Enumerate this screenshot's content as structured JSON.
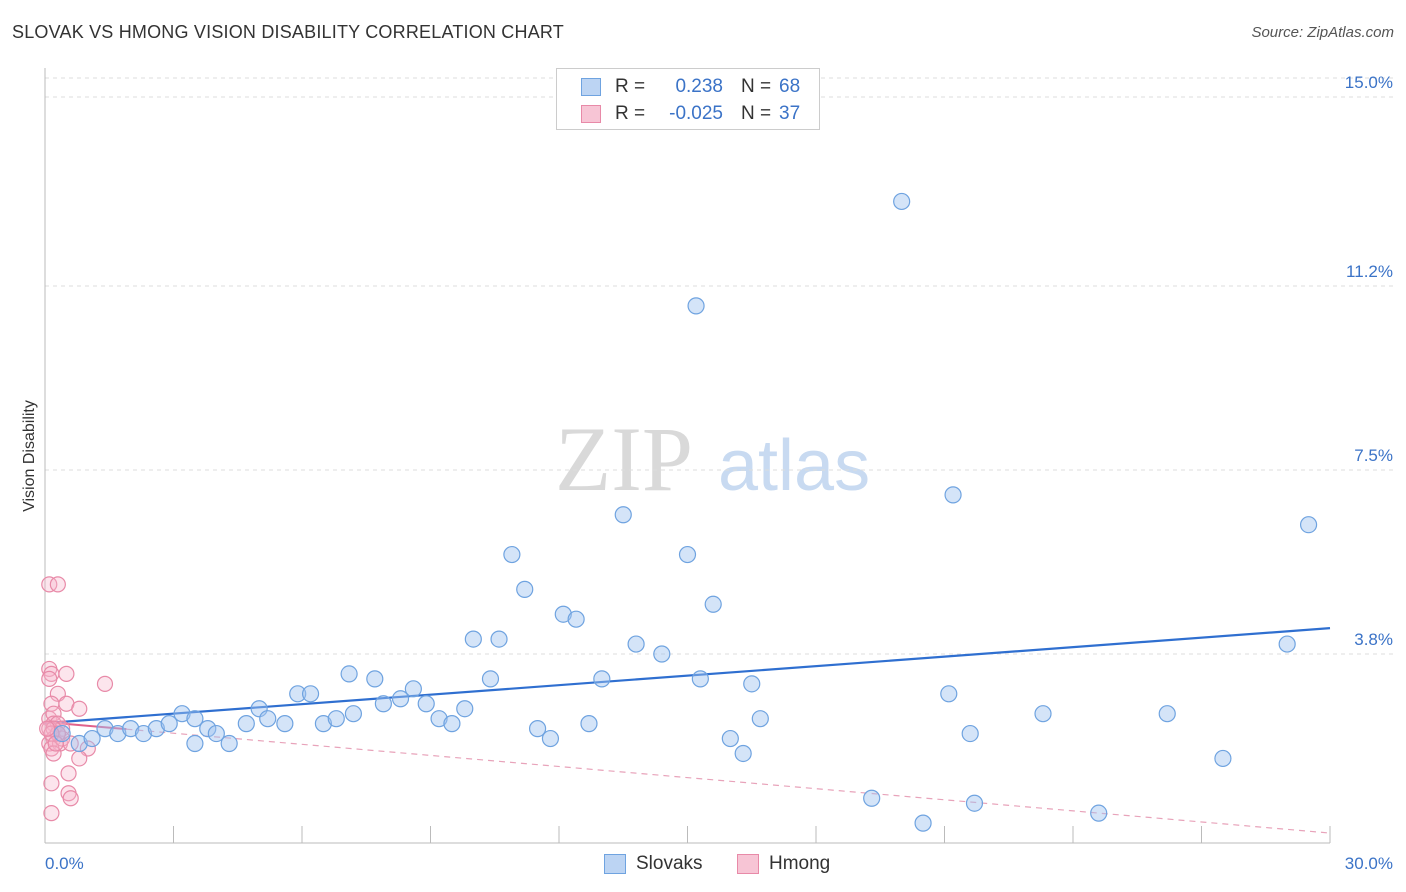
{
  "header": {
    "title": "SLOVAK VS HMONG VISION DISABILITY CORRELATION CHART",
    "source": "Source: ZipAtlas.com"
  },
  "watermark": {
    "zip": "ZIP",
    "atlas": "atlas"
  },
  "legend": {
    "rows": [
      {
        "r_label": "R =",
        "r_value": "0.238",
        "n_label": "N =",
        "n_value": "68",
        "color": "#6fa3e0",
        "fill": "#bcd4f3"
      },
      {
        "r_label": "R =",
        "r_value": "-0.025",
        "n_label": "N =",
        "n_value": "37",
        "color": "#e88aa8",
        "fill": "#f7c5d5"
      }
    ]
  },
  "bottom_legend": {
    "slovaks": "Slovaks",
    "hmong": "Hmong"
  },
  "colors": {
    "blue": "#3b73c7",
    "blue_line": "#2f6fd0",
    "pink": "#e0628c",
    "grid": "#dddddd"
  },
  "chart_data": {
    "type": "scatter",
    "title": "SLOVAK VS HMONG VISION DISABILITY CORRELATION CHART",
    "xlabel": "",
    "ylabel": "Vision Disability",
    "xlim": [
      0,
      30
    ],
    "ylim": [
      0,
      15.5
    ],
    "x_tick_labels": [
      "0.0%",
      "30.0%"
    ],
    "y_ticks": [
      3.8,
      7.5,
      11.2,
      15.0
    ],
    "y_tick_labels": [
      "3.8%",
      "7.5%",
      "11.2%",
      "15.0%"
    ],
    "series": [
      {
        "name": "Slovaks",
        "R": 0.238,
        "N": 68,
        "trend": {
          "x": [
            0,
            30
          ],
          "y": [
            2.41,
            4.32
          ]
        },
        "points": [
          [
            0.4,
            2.2
          ],
          [
            0.8,
            2.0
          ],
          [
            1.1,
            2.1
          ],
          [
            1.4,
            2.3
          ],
          [
            1.7,
            2.2
          ],
          [
            2.0,
            2.3
          ],
          [
            2.3,
            2.2
          ],
          [
            2.6,
            2.3
          ],
          [
            2.9,
            2.4
          ],
          [
            3.2,
            2.6
          ],
          [
            3.5,
            2.5
          ],
          [
            3.5,
            2.0
          ],
          [
            3.8,
            2.3
          ],
          [
            4.0,
            2.2
          ],
          [
            4.3,
            2.0
          ],
          [
            4.7,
            2.4
          ],
          [
            5.0,
            2.7
          ],
          [
            5.2,
            2.5
          ],
          [
            5.6,
            2.4
          ],
          [
            5.9,
            3.0
          ],
          [
            6.2,
            3.0
          ],
          [
            6.5,
            2.4
          ],
          [
            6.8,
            2.5
          ],
          [
            7.1,
            3.4
          ],
          [
            7.2,
            2.6
          ],
          [
            7.7,
            3.3
          ],
          [
            7.9,
            2.8
          ],
          [
            8.3,
            2.9
          ],
          [
            8.6,
            3.1
          ],
          [
            8.9,
            2.8
          ],
          [
            9.2,
            2.5
          ],
          [
            9.5,
            2.4
          ],
          [
            9.8,
            2.7
          ],
          [
            10.0,
            4.1
          ],
          [
            10.4,
            3.3
          ],
          [
            10.6,
            4.1
          ],
          [
            10.9,
            5.8
          ],
          [
            11.2,
            5.1
          ],
          [
            11.5,
            2.3
          ],
          [
            11.8,
            2.1
          ],
          [
            12.1,
            4.6
          ],
          [
            12.4,
            4.5
          ],
          [
            12.7,
            2.4
          ],
          [
            13.0,
            3.3
          ],
          [
            13.5,
            6.6
          ],
          [
            13.8,
            4.0
          ],
          [
            14.4,
            3.8
          ],
          [
            15.0,
            5.8
          ],
          [
            15.2,
            10.8
          ],
          [
            15.3,
            3.3
          ],
          [
            15.6,
            4.8
          ],
          [
            16.0,
            2.1
          ],
          [
            16.3,
            1.8
          ],
          [
            16.7,
            2.5
          ],
          [
            16.5,
            3.2
          ],
          [
            19.3,
            0.9
          ],
          [
            20.0,
            12.9
          ],
          [
            20.5,
            0.4
          ],
          [
            21.1,
            3.0
          ],
          [
            21.2,
            7.0
          ],
          [
            21.6,
            2.2
          ],
          [
            21.7,
            0.8
          ],
          [
            23.3,
            2.6
          ],
          [
            24.6,
            0.6
          ],
          [
            26.2,
            2.6
          ],
          [
            27.5,
            1.7
          ],
          [
            29.0,
            4.0
          ],
          [
            29.5,
            6.4
          ]
        ]
      },
      {
        "name": "Hmong",
        "R": -0.025,
        "N": 37,
        "trend": {
          "x": [
            0,
            30
          ],
          "y": [
            2.43,
            0.2
          ]
        },
        "points": [
          [
            0.1,
            5.2
          ],
          [
            0.3,
            5.2
          ],
          [
            0.1,
            3.5
          ],
          [
            0.15,
            3.4
          ],
          [
            0.1,
            3.3
          ],
          [
            0.5,
            3.4
          ],
          [
            0.3,
            3.0
          ],
          [
            0.5,
            2.8
          ],
          [
            1.4,
            3.2
          ],
          [
            0.15,
            2.8
          ],
          [
            0.8,
            2.7
          ],
          [
            0.1,
            2.5
          ],
          [
            0.2,
            2.6
          ],
          [
            0.2,
            2.4
          ],
          [
            0.3,
            2.4
          ],
          [
            0.4,
            2.3
          ],
          [
            0.1,
            2.3
          ],
          [
            0.2,
            2.3
          ],
          [
            0.3,
            2.2
          ],
          [
            0.2,
            2.1
          ],
          [
            0.1,
            2.0
          ],
          [
            0.35,
            2.0
          ],
          [
            0.15,
            1.9
          ],
          [
            0.4,
            2.1
          ],
          [
            0.3,
            2.2
          ],
          [
            0.15,
            2.2
          ],
          [
            0.6,
            2.0
          ],
          [
            1.0,
            1.9
          ],
          [
            0.2,
            1.8
          ],
          [
            0.8,
            1.7
          ],
          [
            0.55,
            1.4
          ],
          [
            0.15,
            1.2
          ],
          [
            0.55,
            1.0
          ],
          [
            0.6,
            0.9
          ],
          [
            0.15,
            0.6
          ],
          [
            0.05,
            2.3
          ],
          [
            0.25,
            2.0
          ]
        ]
      }
    ]
  }
}
